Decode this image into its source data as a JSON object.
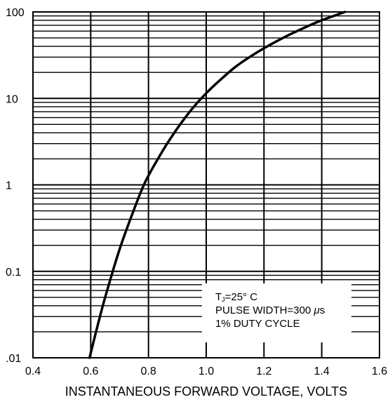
{
  "chart_data": {
    "type": "line",
    "title": "",
    "xlabel": "INSTANTANEOUS FORWARD VOLTAGE, VOLTS",
    "ylabel": "",
    "xlim": [
      0.4,
      1.6
    ],
    "ylim": [
      0.01,
      100
    ],
    "yscale": "log",
    "grid": true,
    "x_ticks": [
      0.4,
      0.6,
      0.8,
      1.0,
      1.2,
      1.4,
      1.6
    ],
    "x_tick_labels": [
      "0.4",
      "0.6",
      "0.8",
      "1.0",
      "1.2",
      "1.4",
      "1.6"
    ],
    "y_ticks": [
      0.01,
      0.1,
      1,
      10,
      100
    ],
    "y_tick_labels": [
      ".01",
      "0.1",
      "1",
      "10",
      "100"
    ],
    "series": [
      {
        "x": [
          0.596,
          0.62,
          0.65,
          0.7,
          0.75,
          0.79,
          0.85,
          0.9,
          0.95,
          1.0,
          1.05,
          1.1,
          1.15,
          1.2,
          1.25,
          1.3,
          1.35,
          1.4,
          1.45,
          1.48
        ],
        "y": [
          0.01,
          0.021,
          0.05,
          0.18,
          0.52,
          1.1,
          2.5,
          4.5,
          7.5,
          11.5,
          16.5,
          23,
          30,
          38,
          47,
          57,
          68,
          80,
          92,
          100
        ]
      }
    ],
    "annotations": {
      "line1_main": "T",
      "line1_sub": "J",
      "line1_rest": "=25° C",
      "line2_prefix": "PULSE WIDTH=300 ",
      "line2_mu": "μ",
      "line2_suffix": "s",
      "line3": "1% DUTY CYCLE"
    }
  }
}
